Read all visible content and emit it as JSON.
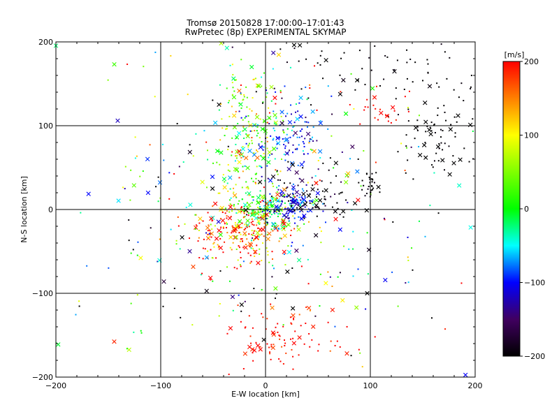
{
  "chart_data": {
    "type": "scatter",
    "title": "Tromsø 20150828 17:00:00–17:01:43",
    "subtitle": "RwPretec (8p) EXPERIMENTAL SKYMAP",
    "xlabel": "E-W location [km]",
    "ylabel": "N-S location [km]",
    "xlim": [
      -200,
      200
    ],
    "ylim": [
      -200,
      200
    ],
    "xticks": [
      -200,
      -100,
      0,
      100,
      200
    ],
    "yticks": [
      -200,
      -100,
      0,
      100,
      200
    ],
    "xtick_labels": [
      "−200",
      "−100",
      "0",
      "100",
      "200"
    ],
    "ytick_labels": [
      "−200",
      "−100",
      "0",
      "100",
      "200"
    ],
    "grid": true,
    "colorbar": {
      "label": "[m/s]",
      "range": [
        -200,
        200
      ],
      "ticks": [
        200,
        100,
        0,
        -100,
        -200
      ],
      "tick_labels": [
        "200",
        "100",
        "0",
        "−100",
        "−200"
      ]
    },
    "clusters": [
      {
        "x": 0,
        "y": 0,
        "sx": 16,
        "sy": 12,
        "n": 150,
        "v": 0,
        "vs": 40
      },
      {
        "x": 25,
        "y": 5,
        "sx": 12,
        "sy": 10,
        "n": 120,
        "v": -100,
        "vs": 25
      },
      {
        "x": -25,
        "y": -25,
        "sx": 24,
        "sy": 18,
        "n": 230,
        "v": 190,
        "vs": 80
      },
      {
        "x": -15,
        "y": 90,
        "sx": 18,
        "sy": 40,
        "n": 200,
        "v": 40,
        "vs": 60
      },
      {
        "x": 25,
        "y": 85,
        "sx": 18,
        "sy": 25,
        "n": 120,
        "v": -90,
        "vs": 40
      },
      {
        "x": 45,
        "y": 15,
        "sx": 25,
        "sy": 18,
        "n": 80,
        "v": -200,
        "vs": 20
      },
      {
        "x": 100,
        "y": 30,
        "sx": 4,
        "sy": 6,
        "n": 30,
        "v": -200,
        "vs": 5
      },
      {
        "x": 165,
        "y": 90,
        "sx": 20,
        "sy": 30,
        "n": 80,
        "v": -200,
        "vs": 5
      },
      {
        "x": 100,
        "y": 165,
        "sx": 50,
        "sy": 20,
        "n": 60,
        "v": -200,
        "vs": 5
      },
      {
        "x": 20,
        "y": -150,
        "sx": 25,
        "sy": 18,
        "n": 90,
        "v": 200,
        "vs": 20
      },
      {
        "x": 110,
        "y": 120,
        "sx": 12,
        "sy": 12,
        "n": 25,
        "v": 200,
        "vs": 10
      },
      {
        "x": 0,
        "y": 0,
        "sx": 100,
        "sy": 100,
        "n": 380,
        "v": 0,
        "vs": 160
      }
    ]
  }
}
